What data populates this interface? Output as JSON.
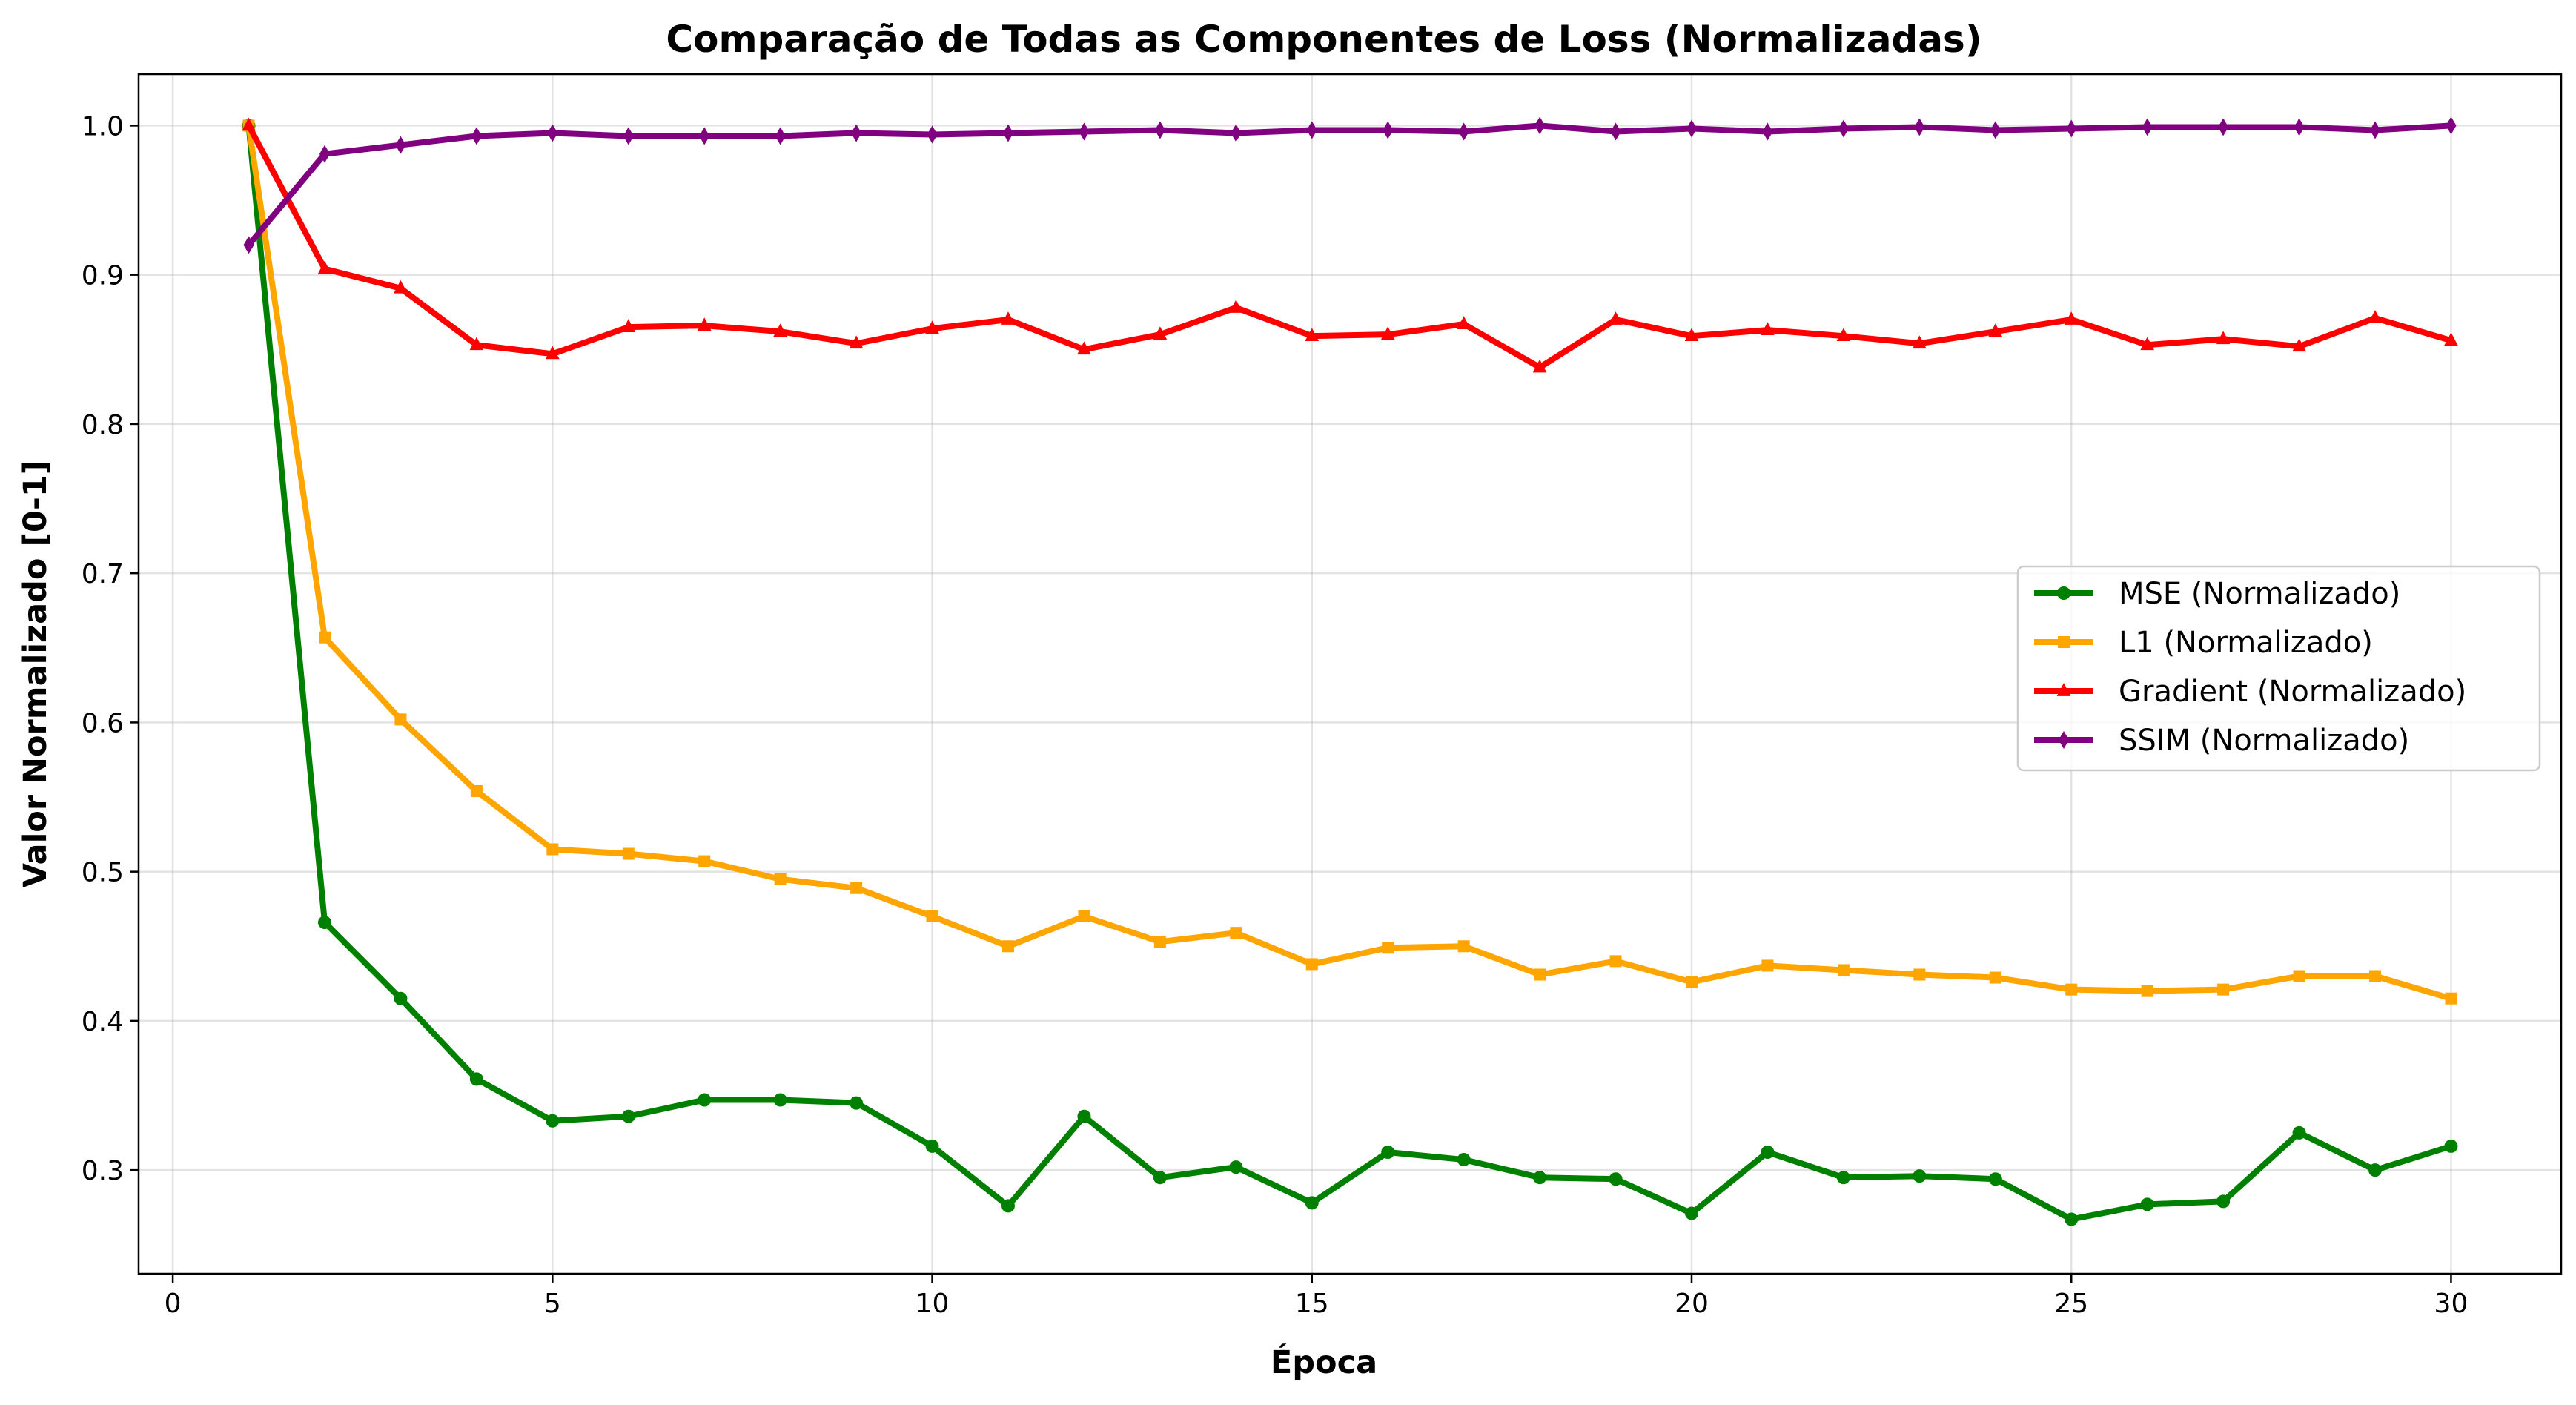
{
  "chart_data": {
    "type": "line",
    "title": "Comparação de Todas as Componentes de Loss (Normalizadas)",
    "xlabel": "Época",
    "ylabel": "Valor Normalizado [0-1]",
    "xlim": [
      -0.45,
      31.45
    ],
    "ylim": [
      0.2305,
      1.0345
    ],
    "xticks": [
      0,
      5,
      10,
      15,
      20,
      25,
      30
    ],
    "yticks": [
      0.3,
      0.4,
      0.5,
      0.6,
      0.7,
      0.8,
      0.9,
      1.0
    ],
    "grid": true,
    "legend_position": "center-right",
    "x": [
      1,
      2,
      3,
      4,
      5,
      6,
      7,
      8,
      9,
      10,
      11,
      12,
      13,
      14,
      15,
      16,
      17,
      18,
      19,
      20,
      21,
      22,
      23,
      24,
      25,
      26,
      27,
      28,
      29,
      30
    ],
    "series": [
      {
        "name": "MSE (Normalizado)",
        "color": "#008000",
        "marker": "circle",
        "values": [
          1.0,
          0.466,
          0.415,
          0.361,
          0.333,
          0.336,
          0.347,
          0.347,
          0.345,
          0.316,
          0.276,
          0.336,
          0.295,
          0.302,
          0.278,
          0.312,
          0.307,
          0.295,
          0.294,
          0.271,
          0.312,
          0.295,
          0.296,
          0.294,
          0.267,
          0.277,
          0.279,
          0.325,
          0.3,
          0.316
        ]
      },
      {
        "name": "L1 (Normalizado)",
        "color": "#FFA500",
        "marker": "square",
        "values": [
          1.0,
          0.657,
          0.602,
          0.554,
          0.515,
          0.512,
          0.507,
          0.495,
          0.489,
          0.47,
          0.45,
          0.47,
          0.453,
          0.459,
          0.438,
          0.449,
          0.45,
          0.431,
          0.44,
          0.426,
          0.437,
          0.434,
          0.431,
          0.429,
          0.421,
          0.42,
          0.421,
          0.43,
          0.43,
          0.415
        ]
      },
      {
        "name": "Gradient (Normalizado)",
        "color": "#FF0000",
        "marker": "triangle",
        "values": [
          1.0,
          0.904,
          0.891,
          0.853,
          0.847,
          0.865,
          0.866,
          0.862,
          0.854,
          0.864,
          0.87,
          0.85,
          0.86,
          0.878,
          0.859,
          0.86,
          0.867,
          0.838,
          0.87,
          0.859,
          0.863,
          0.859,
          0.854,
          0.862,
          0.87,
          0.853,
          0.857,
          0.852,
          0.871,
          0.856
        ]
      },
      {
        "name": "SSIM (Normalizado)",
        "color": "#800080",
        "marker": "diamond",
        "values": [
          0.92,
          0.981,
          0.987,
          0.993,
          0.995,
          0.993,
          0.993,
          0.993,
          0.995,
          0.994,
          0.995,
          0.996,
          0.997,
          0.995,
          0.997,
          0.997,
          0.996,
          1.0,
          0.996,
          0.998,
          0.996,
          0.998,
          0.999,
          0.997,
          0.998,
          0.999,
          0.999,
          0.999,
          0.997,
          1.0
        ]
      }
    ]
  }
}
